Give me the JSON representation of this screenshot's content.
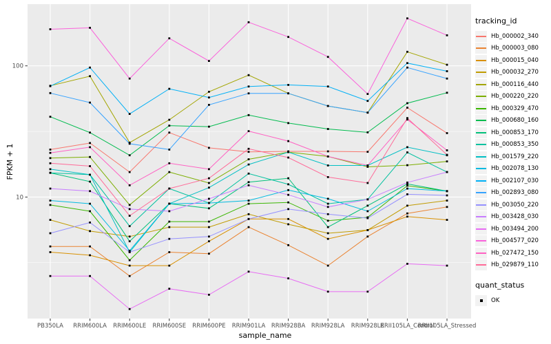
{
  "y_axis": {
    "title": "FPKM + 1",
    "tick_labels": [
      "100",
      "10"
    ],
    "tick_values": [
      100,
      10
    ]
  },
  "x_axis": {
    "title": "sample_name"
  },
  "legend": {
    "tracking_title": "tracking_id",
    "quant_title": "quant_status",
    "quant_items": [
      {
        "label": "OK",
        "marker": "black-square"
      }
    ]
  },
  "chart_data": {
    "type": "line",
    "title": "",
    "xlabel": "sample_name",
    "ylabel": "FPKM + 1",
    "y_scale": "log10",
    "ylim": [
      1.2,
      295
    ],
    "y_major_gridlines": [
      10,
      100
    ],
    "y_minor_gridlines": [
      3.162,
      31.623
    ],
    "grid": "white-on-gray-panel",
    "legend_position": "right",
    "point_marker": "black-square",
    "categories": [
      "PB350LA",
      "RRIM600LA",
      "RRIM600LE",
      "RRIM600SE",
      "RRIM600PE",
      "RRIM901LA",
      "RRIM928BA",
      "RRIM928LA",
      "RRIM928LE",
      "RRII105LA_Control",
      "RRII105LA_Stressed"
    ],
    "series": [
      {
        "name": "Hb_000002_340",
        "color": "#F8766D",
        "values": [
          23.0,
          25.8,
          15.5,
          31.0,
          23.7,
          22.1,
          22.3,
          22.3,
          22.1,
          48.0,
          30.7
        ]
      },
      {
        "name": "Hb_000003_080",
        "color": "#EA8331",
        "values": [
          4.2,
          4.2,
          2.5,
          3.8,
          3.7,
          5.9,
          4.3,
          3.0,
          5.0,
          7.5,
          8.4
        ]
      },
      {
        "name": "Hb_000015_040",
        "color": "#D89000",
        "values": [
          3.8,
          3.6,
          3.0,
          3.0,
          4.6,
          6.8,
          6.8,
          4.8,
          5.6,
          7.1,
          6.7
        ]
      },
      {
        "name": "Hb_000032_270",
        "color": "#C09B00",
        "values": [
          6.7,
          5.5,
          5.0,
          5.9,
          5.9,
          7.4,
          6.2,
          5.3,
          5.6,
          8.6,
          9.4
        ]
      },
      {
        "name": "Hb_000116_440",
        "color": "#A3A500",
        "values": [
          70.5,
          83.4,
          26.0,
          38.8,
          63.4,
          85.0,
          61.7,
          49.4,
          44.0,
          128.0,
          102.0
        ]
      },
      {
        "name": "Hb_000220_220",
        "color": "#7CAE00",
        "values": [
          19.8,
          20.2,
          8.7,
          15.5,
          12.8,
          19.4,
          22.0,
          20.4,
          17.0,
          17.5,
          18.7
        ]
      },
      {
        "name": "Hb_000329_470",
        "color": "#39B600",
        "values": [
          8.7,
          7.8,
          3.3,
          6.5,
          6.5,
          8.9,
          9.1,
          6.6,
          7.0,
          12.2,
          11.1
        ]
      },
      {
        "name": "Hb_000680_160",
        "color": "#00BB4E",
        "values": [
          40.9,
          31.0,
          20.8,
          35.0,
          34.4,
          42.1,
          36.6,
          33.0,
          31.1,
          51.9,
          62.4
        ]
      },
      {
        "name": "Hb_000853_170",
        "color": "#00C079",
        "values": [
          15.3,
          13.1,
          4.6,
          8.9,
          8.2,
          13.0,
          13.9,
          5.9,
          8.6,
          12.6,
          11.1
        ]
      },
      {
        "name": "Hb_000853_350",
        "color": "#00C19F",
        "values": [
          15.3,
          14.8,
          6.0,
          11.6,
          9.0,
          15.1,
          12.5,
          8.9,
          9.6,
          21.9,
          15.5
        ]
      },
      {
        "name": "Hb_001579_220",
        "color": "#00BFC4",
        "values": [
          16.3,
          14.8,
          3.8,
          8.9,
          11.8,
          17.7,
          22.0,
          17.4,
          17.4,
          24.0,
          20.8
        ]
      },
      {
        "name": "Hb_002078_130",
        "color": "#00BAE0",
        "values": [
          9.4,
          8.9,
          3.9,
          8.9,
          9.0,
          9.4,
          11.3,
          9.7,
          7.8,
          11.6,
          11.1
        ]
      },
      {
        "name": "Hb_002107_030",
        "color": "#00B0F6",
        "values": [
          70.0,
          97.0,
          43.0,
          66.8,
          57.4,
          69.6,
          71.6,
          69.6,
          54.0,
          105.0,
          91.0
        ]
      },
      {
        "name": "Hb_002893_080",
        "color": "#35A2FF",
        "values": [
          62.0,
          52.5,
          25.5,
          23.0,
          50.4,
          61.7,
          61.7,
          49.4,
          44.0,
          97.0,
          80.0
        ]
      },
      {
        "name": "Hb_003050_220",
        "color": "#9590FF",
        "values": [
          5.3,
          6.4,
          3.8,
          4.8,
          5.0,
          6.8,
          8.1,
          7.4,
          6.9,
          10.5,
          10.3
        ]
      },
      {
        "name": "Hb_003428_030",
        "color": "#C77CFF",
        "values": [
          11.6,
          11.1,
          8.1,
          7.8,
          9.7,
          12.3,
          10.4,
          8.4,
          9.6,
          12.9,
          15.5
        ]
      },
      {
        "name": "Hb_003494_200",
        "color": "#E76BF3",
        "values": [
          2.5,
          2.5,
          1.4,
          2.0,
          1.8,
          2.7,
          2.4,
          1.9,
          1.9,
          3.1,
          3.0
        ]
      },
      {
        "name": "Hb_004577_020",
        "color": "#FA62DB",
        "values": [
          190.0,
          195.0,
          80.0,
          162.0,
          109.0,
          215.0,
          166.0,
          117.0,
          61.0,
          230.0,
          171.0
        ]
      },
      {
        "name": "Hb_027472_150",
        "color": "#FF61C3",
        "values": [
          21.7,
          24.0,
          12.3,
          18.1,
          16.3,
          31.8,
          26.7,
          20.4,
          17.4,
          39.0,
          22.7
        ]
      },
      {
        "name": "Hb_029879_110",
        "color": "#FF6A98",
        "values": [
          18.1,
          17.2,
          7.2,
          11.6,
          13.9,
          23.3,
          20.0,
          14.2,
          12.8,
          40.0,
          21.0
        ]
      }
    ]
  },
  "style": {
    "panel_bg": "#EBEBEB",
    "grid_color": "#FFFFFF",
    "tick_text_color": "#4D4D4D",
    "tick_mark_color": "#333333",
    "point_color": "#000000",
    "legend_key_bg": "#F2F2F2"
  }
}
